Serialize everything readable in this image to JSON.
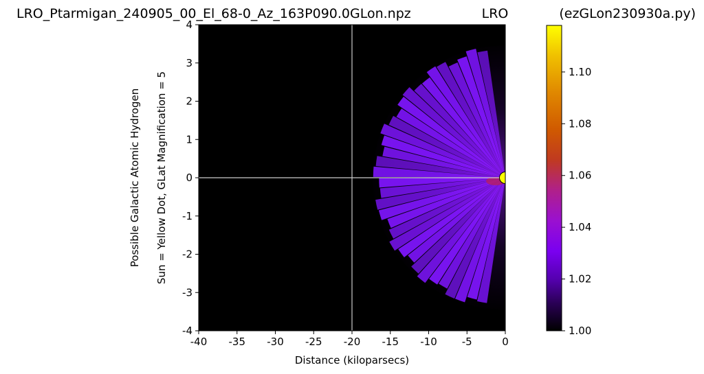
{
  "chart_data": {
    "type": "heatmap",
    "title_left": "LRO_Ptarmigan_240905_00_El_68-0_Az_163P090.0GLon.npz",
    "title_center": "LRO",
    "title_right": "(ezGLon230930a.py)",
    "xlabel": "Distance (kiloparsecs)",
    "ylabel_line1": "Possible Galactic Atomic Hydrogen",
    "ylabel_line2": "Sun = Yellow Dot, GLat Magnification = 5",
    "xlim": [
      -40,
      0
    ],
    "ylim": [
      -4,
      4
    ],
    "x_ticks": [
      -40,
      -35,
      -30,
      -25,
      -20,
      -15,
      -10,
      -5,
      0
    ],
    "y_ticks": [
      -4,
      -3,
      -2,
      -1,
      0,
      1,
      2,
      3,
      4
    ],
    "x_tick_labels": [
      "-40",
      "-35",
      "-30",
      "-25",
      "-20",
      "-15",
      "-10",
      "-5",
      "0"
    ],
    "y_tick_labels": [
      "-4",
      "-3",
      "-2",
      "-1",
      "0",
      "1",
      "2",
      "3",
      "4"
    ],
    "crosshair": {
      "x": -20,
      "y": 0
    },
    "sun_marker": {
      "x": 0,
      "y": 0,
      "color": "#ffff00"
    },
    "colormap": "gnuplot",
    "colorbar": {
      "range": [
        1.0,
        1.118
      ],
      "ticks": [
        1.0,
        1.02,
        1.04,
        1.06,
        1.08,
        1.1
      ],
      "tick_labels": [
        "1.00",
        "1.02",
        "1.04",
        "1.06",
        "1.08",
        "1.10"
      ]
    },
    "fan": {
      "center": [
        0,
        0
      ],
      "outer_radius_kpc": 17.3,
      "angle_range_deg": [
        98,
        262
      ],
      "rays": 34,
      "background_value": 1.0,
      "typical_value": 1.02,
      "peak_value": 1.06
    }
  }
}
